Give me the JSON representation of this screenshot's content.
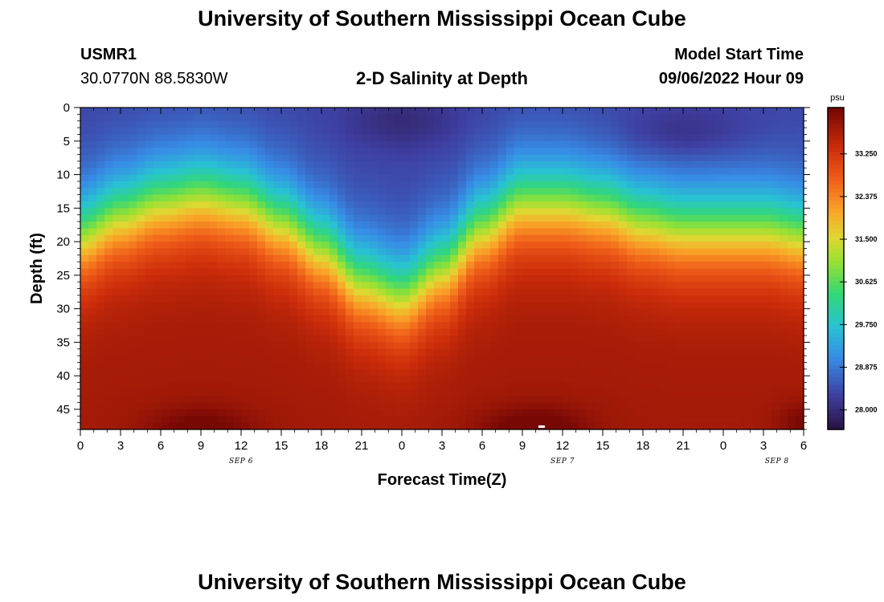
{
  "page": {
    "title_top": "University of Southern Mississippi Ocean Cube",
    "title_bottom": "University of Southern Mississippi Ocean Cube",
    "station_id": "USMR1",
    "coordinates": "30.0770N  88.5830W",
    "model_start_label": "Model Start Time",
    "model_start_value": "09/06/2022 Hour 09"
  },
  "colors": {
    "low": "#2a1a4a",
    "mid": "#2ec5a0",
    "high": "#8a0c06",
    "axis": "#000000"
  },
  "chart_data": {
    "type": "heatmap",
    "title": "2-D Salinity at Depth",
    "xlabel": "Forecast Time(Z)",
    "ylabel": "Depth (ft)",
    "x_range_hours": [
      0,
      54
    ],
    "y_range_ft": [
      0,
      48
    ],
    "x_ticks": [
      {
        "hour": 0,
        "label": "0"
      },
      {
        "hour": 3,
        "label": "3"
      },
      {
        "hour": 6,
        "label": "6"
      },
      {
        "hour": 9,
        "label": "9"
      },
      {
        "hour": 12,
        "label": "12"
      },
      {
        "hour": 15,
        "label": "15"
      },
      {
        "hour": 18,
        "label": "18"
      },
      {
        "hour": 21,
        "label": "21"
      },
      {
        "hour": 24,
        "label": "0"
      },
      {
        "hour": 27,
        "label": "3"
      },
      {
        "hour": 30,
        "label": "6"
      },
      {
        "hour": 33,
        "label": "9"
      },
      {
        "hour": 36,
        "label": "12"
      },
      {
        "hour": 39,
        "label": "15"
      },
      {
        "hour": 42,
        "label": "18"
      },
      {
        "hour": 45,
        "label": "21"
      },
      {
        "hour": 48,
        "label": "0"
      },
      {
        "hour": 51,
        "label": "3"
      },
      {
        "hour": 54,
        "label": "6"
      }
    ],
    "date_labels": [
      {
        "hour": 12,
        "label": "SEP 6"
      },
      {
        "hour": 36,
        "label": "SEP 7"
      },
      {
        "hour": 52,
        "label": "SEP 8"
      }
    ],
    "y_ticks": [
      0,
      5,
      10,
      15,
      20,
      25,
      30,
      35,
      40,
      45
    ],
    "colorbar": {
      "unit": "psu",
      "range": [
        27.6,
        34.2
      ],
      "ticks": [
        "33.250",
        "32.375",
        "31.500",
        "30.625",
        "29.750",
        "28.875",
        "28.000"
      ]
    },
    "salinity_model": {
      "surface_psu": 28.3,
      "deep_psu": 33.8,
      "halocline_depths_ft": [
        {
          "hour": 0,
          "depth": 19
        },
        {
          "hour": 3,
          "depth": 16
        },
        {
          "hour": 6,
          "depth": 14
        },
        {
          "hour": 9,
          "depth": 13
        },
        {
          "hour": 12,
          "depth": 14
        },
        {
          "hour": 15,
          "depth": 17
        },
        {
          "hour": 18,
          "depth": 21
        },
        {
          "hour": 21,
          "depth": 26
        },
        {
          "hour": 24,
          "depth": 28
        },
        {
          "hour": 27,
          "depth": 24
        },
        {
          "hour": 30,
          "depth": 18
        },
        {
          "hour": 33,
          "depth": 14
        },
        {
          "hour": 36,
          "depth": 14
        },
        {
          "hour": 39,
          "depth": 15
        },
        {
          "hour": 42,
          "depth": 17
        },
        {
          "hour": 45,
          "depth": 18
        },
        {
          "hour": 48,
          "depth": 18
        },
        {
          "hour": 51,
          "depth": 18
        },
        {
          "hour": 54,
          "depth": 19
        }
      ]
    }
  }
}
